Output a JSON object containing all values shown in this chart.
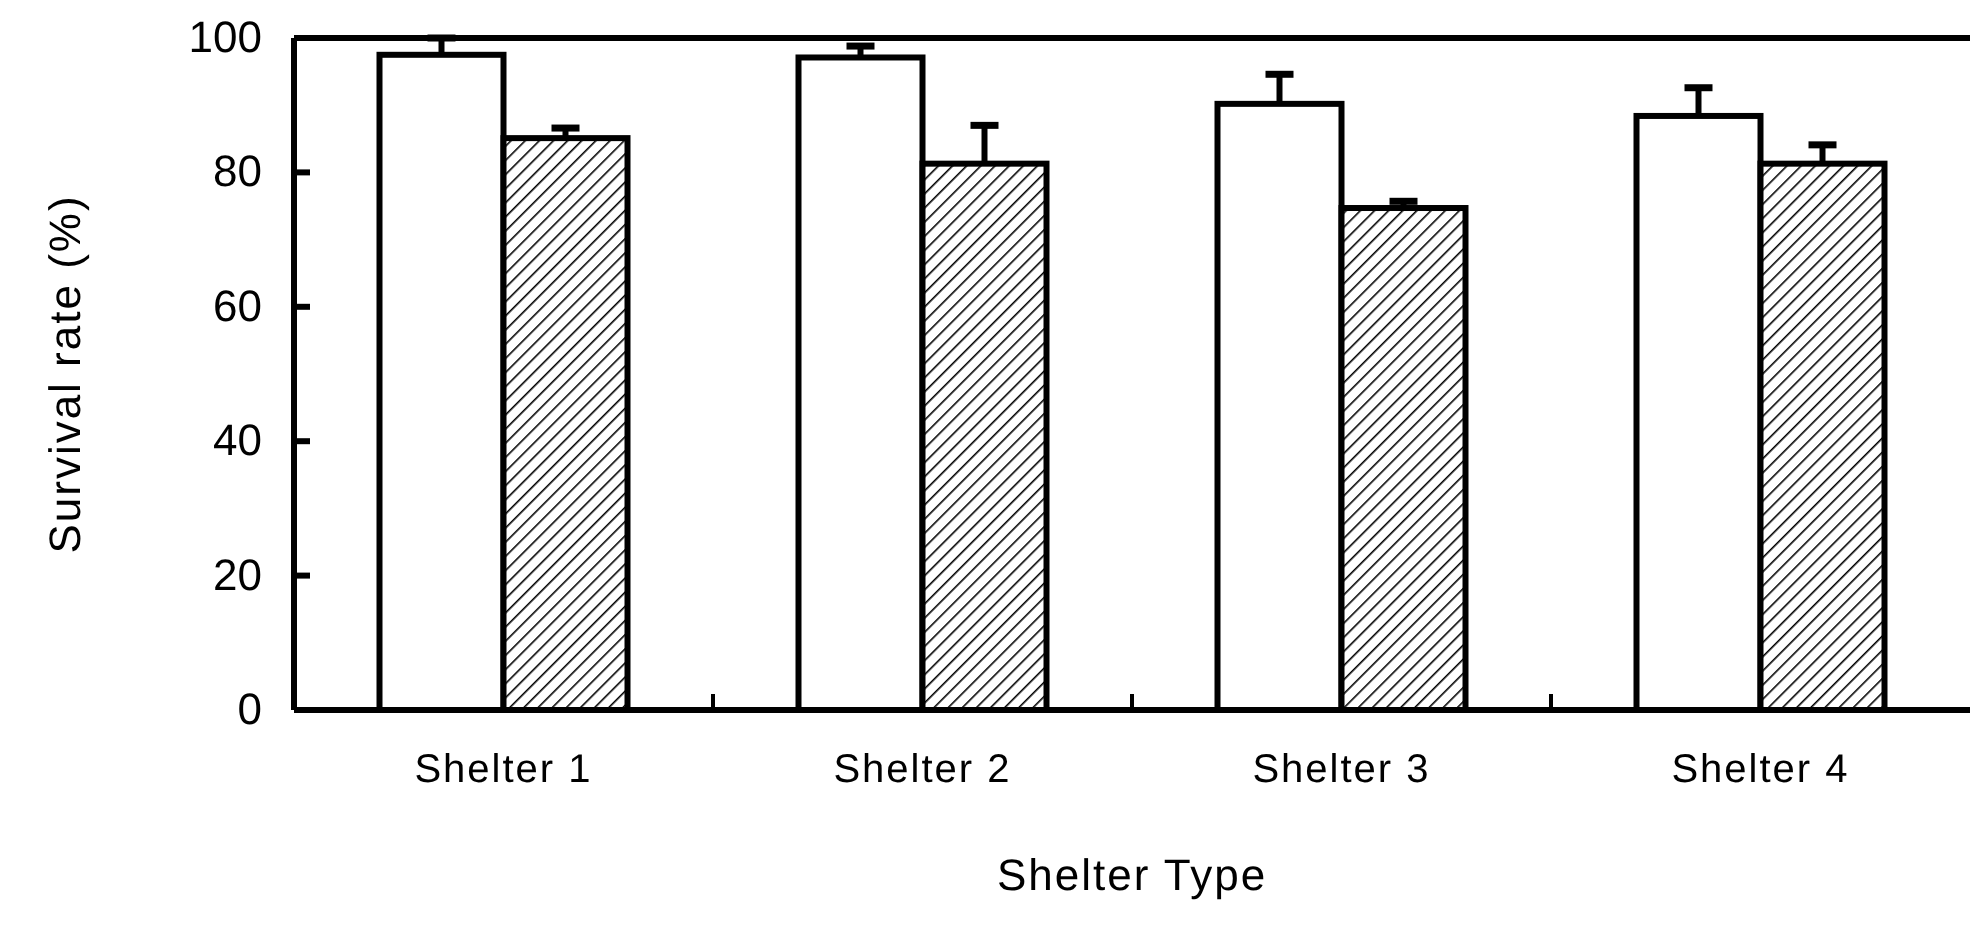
{
  "chart_data": {
    "type": "bar",
    "xlabel": "Shelter Type",
    "ylabel": "Survival rate (%)",
    "categories": [
      "Shelter 1",
      "Shelter 2",
      "Shelter 3",
      "Shelter 4"
    ],
    "series": [
      {
        "color": "#ffffff",
        "values": [
          97.5,
          97.1,
          90.2,
          88.4
        ],
        "errors": [
          2.5,
          1.7,
          4.4,
          4.2
        ]
      },
      {
        "color": "#000000",
        "values": [
          85.1,
          81.3,
          74.7,
          81.3
        ],
        "errors": [
          1.5,
          5.7,
          1.0,
          2.8
        ]
      }
    ],
    "ylim": [
      0,
      100
    ],
    "yticks": [
      0,
      20,
      40,
      60,
      80,
      100
    ],
    "grid": false
  }
}
